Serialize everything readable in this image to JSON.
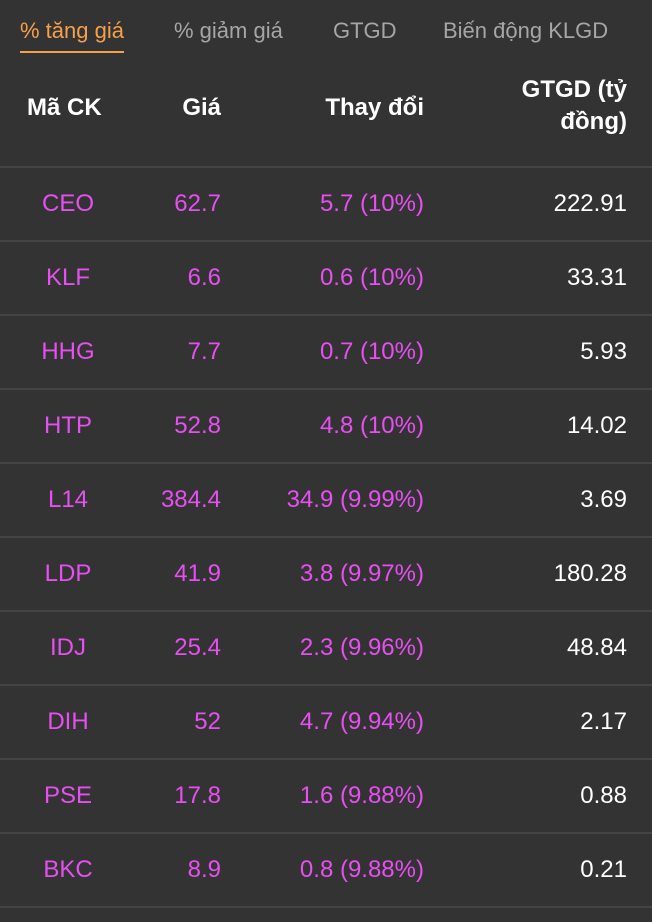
{
  "tabs": [
    {
      "label": "% tăng giá",
      "active": true
    },
    {
      "label": "% giảm giá",
      "active": false
    },
    {
      "label": "GTGD",
      "active": false
    },
    {
      "label": "Biến động KLGD",
      "active": false
    }
  ],
  "table": {
    "headers": {
      "code": "Mã CK",
      "price": "Giá",
      "change": "Thay đổi",
      "value": "GTGD (tỷ đồng)"
    },
    "rows": [
      {
        "code": "CEO",
        "price": "62.7",
        "change": "5.7 (10%)",
        "value": "222.91"
      },
      {
        "code": "KLF",
        "price": "6.6",
        "change": "0.6 (10%)",
        "value": "33.31"
      },
      {
        "code": "HHG",
        "price": "7.7",
        "change": "0.7 (10%)",
        "value": "5.93"
      },
      {
        "code": "HTP",
        "price": "52.8",
        "change": "4.8 (10%)",
        "value": "14.02"
      },
      {
        "code": "L14",
        "price": "384.4",
        "change": "34.9 (9.99%)",
        "value": "3.69"
      },
      {
        "code": "LDP",
        "price": "41.9",
        "change": "3.8 (9.97%)",
        "value": "180.28"
      },
      {
        "code": "IDJ",
        "price": "25.4",
        "change": "2.3 (9.96%)",
        "value": "48.84"
      },
      {
        "code": "DIH",
        "price": "52",
        "change": "4.7 (9.94%)",
        "value": "2.17"
      },
      {
        "code": "PSE",
        "price": "17.8",
        "change": "1.6 (9.88%)",
        "value": "0.88"
      },
      {
        "code": "BKC",
        "price": "8.9",
        "change": "0.8 (9.88%)",
        "value": "0.21"
      }
    ]
  },
  "colors": {
    "background": "#333333",
    "active_tab": "#f5a04a",
    "inactive_tab": "#a6a6a6",
    "gain": "#e64ff0",
    "value_text": "#ffffff",
    "divider": "#444444"
  }
}
